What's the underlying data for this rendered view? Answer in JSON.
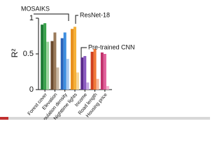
{
  "chart_data": {
    "type": "bar",
    "y_label": "R²",
    "categories": [
      "Forest cover",
      "Elevation",
      "Population density",
      "Nighttime lights",
      "Income",
      "Road length",
      "Housing price"
    ],
    "series": [
      {
        "name": "MOSAIKS",
        "colors": [
          "#1e7a35",
          "#6b4a2e",
          "#2a62b8",
          "#e8901e",
          "#5a2a8a",
          "#d0401e",
          "#c0306a"
        ],
        "values": [
          0.91,
          0.68,
          0.72,
          0.85,
          0.45,
          0.53,
          0.52
        ]
      },
      {
        "name": "ResNet-18",
        "colors": [
          "#3aa24c",
          "#9a7a5a",
          "#3d8ee0",
          "#f5b13a",
          "#8a5ac0",
          "#f07a3a",
          "#e0609a"
        ],
        "values": [
          0.93,
          0.8,
          0.8,
          0.88,
          0.47,
          0.57,
          0.5
        ]
      },
      {
        "name": "Pre-trained CNN",
        "colors": [
          "#9fd4a0",
          "#c9b8a3",
          "#a9c8ef",
          "#f6d79a",
          "#c4a9e2",
          "#f6b79a",
          "#f2b0cc"
        ],
        "values": [
          0.67,
          0.31,
          0.43,
          0.24,
          0.1,
          0.15,
          0.05
        ]
      }
    ],
    "ylim": [
      0,
      1
    ],
    "yticks": [
      0,
      0.5,
      1
    ]
  }
}
